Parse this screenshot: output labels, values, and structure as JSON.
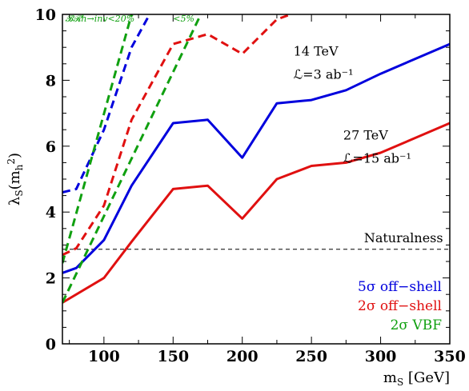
{
  "chart_data": {
    "type": "line",
    "xlabel": "m_S [GeV]",
    "ylabel": "λ_S(m_h^2)",
    "xlim": [
      70,
      350
    ],
    "ylim": [
      0,
      10
    ],
    "xticks": [
      100,
      150,
      200,
      250,
      300,
      350
    ],
    "yticks": [
      0,
      2,
      4,
      6,
      8,
      10
    ],
    "grid": false,
    "series": [
      {
        "name": "blue-solid",
        "color": "#0000dd",
        "dash": "solid",
        "x": [
          70,
          80,
          100,
          120,
          150,
          175,
          200,
          225,
          250,
          275,
          300,
          350
        ],
        "y": [
          2.15,
          2.3,
          3.15,
          4.8,
          6.7,
          6.8,
          5.65,
          7.3,
          7.4,
          7.7,
          8.2,
          9.1
        ]
      },
      {
        "name": "red-solid",
        "color": "#e01010",
        "dash": "solid",
        "x": [
          70,
          100,
          120,
          150,
          175,
          200,
          225,
          250,
          275,
          300,
          350
        ],
        "y": [
          1.25,
          2.0,
          3.1,
          4.7,
          4.8,
          3.8,
          5.0,
          5.4,
          5.5,
          5.8,
          6.7
        ]
      },
      {
        "name": "blue-dashed",
        "color": "#0000dd",
        "dash": "dashed",
        "x": [
          70,
          80,
          100,
          120,
          133
        ],
        "y": [
          4.6,
          4.7,
          6.5,
          9.0,
          10.0
        ]
      },
      {
        "name": "red-dashed",
        "color": "#e01010",
        "dash": "dashed",
        "x": [
          70,
          80,
          100,
          120,
          150,
          175,
          200,
          225,
          235
        ],
        "y": [
          2.7,
          2.9,
          4.2,
          6.8,
          9.1,
          9.4,
          8.8,
          9.85,
          10.0
        ]
      },
      {
        "name": "green-dashed-br",
        "color": "#10a010",
        "dash": "dashed",
        "x": [
          70,
          120
        ],
        "y": [
          2.45,
          10.0
        ]
      },
      {
        "name": "green-dashed-5pct",
        "color": "#10a010",
        "dash": "dashed",
        "x": [
          70,
          170
        ],
        "y": [
          1.25,
          10.0
        ]
      }
    ],
    "naturalness_y": 2.87,
    "annotations": [
      {
        "text": "14 TeV",
        "x": 237,
        "y": 8.75
      },
      {
        "text": "ℒ=3 ab⁻¹",
        "x": 237,
        "y": 8.05
      },
      {
        "text": "27 TeV",
        "x": 273,
        "y": 6.2
      },
      {
        "text": "ℒ=15 ab⁻¹",
        "x": 273,
        "y": 5.5
      },
      {
        "text": "Naturalness",
        "x": 288,
        "y": 3.08
      }
    ],
    "small_labels": [
      {
        "text": "𝓑𝓡h→inv<20%",
        "x": 72,
        "y": 9.78
      },
      {
        "text": "<5%",
        "x": 150,
        "y": 9.78
      }
    ],
    "legend": {
      "placement": "bottom-right",
      "entries": [
        {
          "text": "5σ off−shell",
          "color": "#0000dd"
        },
        {
          "text": "2σ off−shell",
          "color": "#e01010"
        },
        {
          "text": "2σ VBF",
          "color": "#10a010"
        }
      ]
    }
  }
}
